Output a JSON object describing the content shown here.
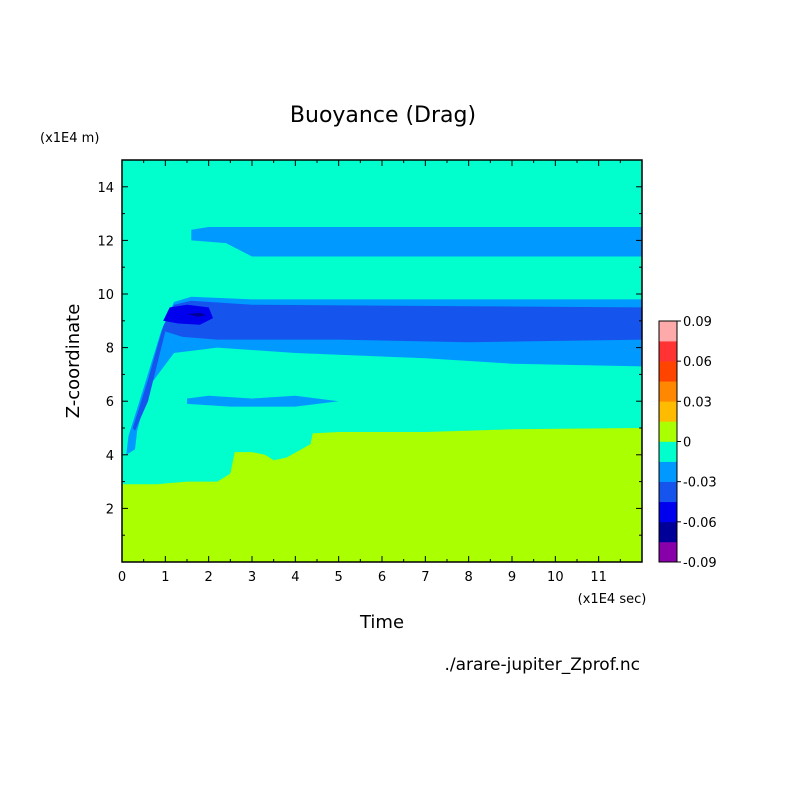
{
  "chart_data": {
    "type": "contour",
    "title": "Buoyance (Drag)",
    "xlabel": "Time",
    "ylabel": "Z-coordinate",
    "x_unit": "(x1E4 sec)",
    "y_unit": "(x1E4 m)",
    "xlim": [
      0,
      12
    ],
    "ylim": [
      0,
      15
    ],
    "xticks": [
      0,
      1,
      2,
      3,
      4,
      5,
      6,
      7,
      8,
      9,
      10,
      11
    ],
    "yticks": [
      2,
      4,
      6,
      8,
      10,
      12,
      14
    ],
    "grid": false,
    "colorbar": {
      "labels": [
        "0.09",
        "0.06",
        "0.03",
        "0",
        "-0.03",
        "-0.06",
        "-0.09"
      ],
      "levels": [
        -0.09,
        -0.075,
        -0.06,
        -0.045,
        -0.03,
        -0.015,
        0,
        0.015,
        0.03,
        0.045,
        0.06,
        0.075,
        0.09
      ],
      "colors": [
        "#8800aa",
        "#000099",
        "#0000ee",
        "#1555ee",
        "#0099ff",
        "#00ffcc",
        "#aaff00",
        "#ffbb00",
        "#ff8800",
        "#ff4400",
        "#ff3333",
        "#ffaaaa"
      ]
    },
    "regions": [
      {
        "name": "background",
        "color": "#00ffcc",
        "points": [
          [
            0,
            0
          ],
          [
            12,
            0
          ],
          [
            12,
            15
          ],
          [
            0,
            15
          ]
        ]
      },
      {
        "name": "upper-band-fill",
        "color": "#0099ff",
        "points": [
          [
            1.6,
            12.4
          ],
          [
            2,
            12.5
          ],
          [
            12,
            12.5
          ],
          [
            12,
            11.4
          ],
          [
            3,
            11.4
          ],
          [
            2.4,
            11.9
          ],
          [
            1.6,
            12.0
          ]
        ]
      },
      {
        "name": "blue-band-outer",
        "color": "#0099ff",
        "points": [
          [
            0.15,
            4.7
          ],
          [
            0.5,
            6.5
          ],
          [
            0.9,
            8.6
          ],
          [
            1.2,
            9.7
          ],
          [
            1.6,
            9.9
          ],
          [
            3,
            9.8
          ],
          [
            12,
            9.8
          ],
          [
            12,
            7.3
          ],
          [
            9,
            7.4
          ],
          [
            7,
            7.6
          ],
          [
            4,
            7.8
          ],
          [
            2.2,
            8.0
          ],
          [
            1.2,
            7.8
          ],
          [
            0.6,
            6.5
          ],
          [
            0.35,
            4.9
          ],
          [
            0.3,
            4.2
          ],
          [
            0.1,
            4.0
          ]
        ]
      },
      {
        "name": "blue-band-middle",
        "color": "#1555ee",
        "points": [
          [
            0.25,
            5.0
          ],
          [
            0.6,
            6.8
          ],
          [
            0.95,
            8.8
          ],
          [
            1.2,
            9.6
          ],
          [
            1.6,
            9.75
          ],
          [
            3,
            9.6
          ],
          [
            12,
            9.5
          ],
          [
            12,
            8.3
          ],
          [
            8,
            8.2
          ],
          [
            5,
            8.3
          ],
          [
            2.2,
            8.3
          ],
          [
            1.4,
            8.4
          ],
          [
            1.0,
            8.6
          ],
          [
            0.6,
            6.0
          ],
          [
            0.3,
            4.9
          ]
        ]
      },
      {
        "name": "lower-streak",
        "color": "#0099ff",
        "points": [
          [
            1.5,
            6.1
          ],
          [
            2,
            6.2
          ],
          [
            3,
            6.1
          ],
          [
            4,
            6.2
          ],
          [
            5,
            6.0
          ],
          [
            4,
            5.8
          ],
          [
            2.5,
            5.8
          ],
          [
            1.5,
            5.9
          ]
        ]
      },
      {
        "name": "positive-region",
        "color": "#aaff00",
        "points": [
          [
            0,
            0
          ],
          [
            12,
            0
          ],
          [
            12,
            5.0
          ],
          [
            9,
            4.95
          ],
          [
            7,
            4.85
          ],
          [
            5,
            4.85
          ],
          [
            4.4,
            4.8
          ],
          [
            4.35,
            4.4
          ],
          [
            3.8,
            3.9
          ],
          [
            3.5,
            3.8
          ],
          [
            3.3,
            4.0
          ],
          [
            3.0,
            4.1
          ],
          [
            2.6,
            4.1
          ],
          [
            2.5,
            3.3
          ],
          [
            2.2,
            3.0
          ],
          [
            1.5,
            3.0
          ],
          [
            0.8,
            2.9
          ],
          [
            0,
            2.9
          ]
        ]
      },
      {
        "name": "dark-core",
        "color": "#0000ee",
        "points": [
          [
            0.95,
            9.0
          ],
          [
            1.1,
            9.5
          ],
          [
            1.5,
            9.6
          ],
          [
            2.0,
            9.5
          ],
          [
            2.1,
            9.1
          ],
          [
            1.8,
            8.85
          ],
          [
            1.3,
            8.9
          ]
        ]
      },
      {
        "name": "deep-core",
        "color": "#000099",
        "points": [
          [
            1.5,
            9.25
          ],
          [
            1.8,
            9.3
          ],
          [
            1.95,
            9.2
          ],
          [
            1.75,
            9.15
          ]
        ]
      }
    ],
    "notes": "./arare-jupiter_Zprof.nc"
  }
}
